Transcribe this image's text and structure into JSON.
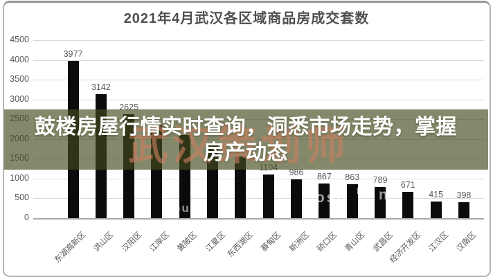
{
  "title": "2021年4月武汉各区域商品房成交套数",
  "chart_data": {
    "type": "bar",
    "title": "2021年4月武汉各区域商品房成交套数",
    "categories": [
      "东湖高新区",
      "洪山区",
      "汉阳区",
      "江岸区",
      "黄陂区",
      "江夏区",
      "东西湖区",
      "蔡甸区",
      "新洲区",
      "硚口区",
      "青山区",
      "武昌区",
      "经济开发区",
      "江汉区",
      "汉南区"
    ],
    "values": [
      3977,
      3142,
      2625,
      2350,
      2100,
      1850,
      1550,
      1104,
      986,
      867,
      863,
      789,
      671,
      415,
      398
    ],
    "value_labels": [
      "3977",
      "3142",
      "2625",
      "",
      "",
      "",
      "",
      "1104",
      "986",
      "867",
      "863",
      "789",
      "671",
      "415",
      "398"
    ],
    "y_tick_labels": [
      "4500",
      "4000",
      "3500",
      "3000",
      "2500",
      "2000",
      "1500",
      "1000",
      "500",
      "0"
    ],
    "ylim": [
      0,
      4500
    ],
    "xlabel": "",
    "ylabel": "",
    "grid": true,
    "legend": false,
    "bar_color": "#0b0b0b",
    "grid_color": "#d9d9d9",
    "baseline_color": "#a8a8a8",
    "axis_text_color": "#595959"
  },
  "overlay_banner": {
    "line1": "鼓楼房屋行情实时查询，洞悉市场走势，掌握",
    "line2": "房产动态",
    "bg_color": "rgba(70,76,30,0.66)",
    "text_color": "#ffffff"
  },
  "watermarks": {
    "red_text": "武汉策划师",
    "red_color": "rgba(201,126,95,0.62)",
    "white_marks": [
      "losh",
      "⌂",
      "ni",
      "ou ni"
    ]
  }
}
